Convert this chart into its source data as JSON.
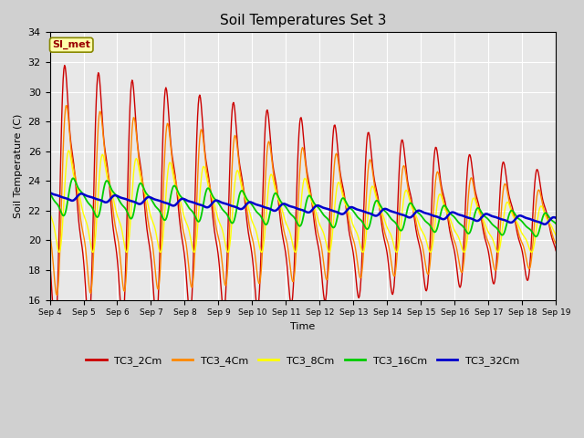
{
  "title": "Soil Temperatures Set 3",
  "xlabel": "Time",
  "ylabel": "Soil Temperature (C)",
  "ylim": [
    16,
    34
  ],
  "xlim": [
    0,
    15
  ],
  "x_tick_labels": [
    "Sep 4",
    "Sep 5",
    "Sep 6",
    "Sep 7",
    "Sep 8",
    "Sep 9",
    "Sep 10",
    "Sep 11",
    "Sep 12",
    "Sep 13",
    "Sep 14",
    "Sep 15",
    "Sep 16",
    "Sep 17",
    "Sep 18",
    "Sep 19"
  ],
  "fig_bg_color": "#d0d0d0",
  "plot_bg_color": "#e8e8e8",
  "legend_labels": [
    "TC3_2Cm",
    "TC3_4Cm",
    "TC3_8Cm",
    "TC3_16Cm",
    "TC3_32Cm"
  ],
  "legend_colors": [
    "#cc0000",
    "#ff8800",
    "#ffff00",
    "#00cc00",
    "#0000cc"
  ],
  "annotation_text": "SI_met",
  "annotation_color": "#990000"
}
